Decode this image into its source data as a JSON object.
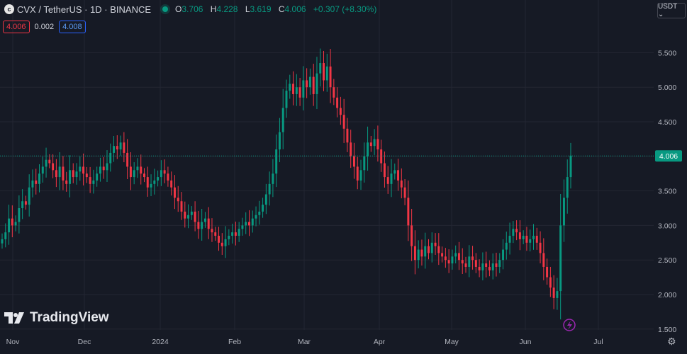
{
  "header": {
    "symbol_title": "CVX / TetherUS · 1D · BINANCE",
    "ohlc": {
      "o_label": "O",
      "o_value": "3.706",
      "h_label": "H",
      "h_value": "4.228",
      "l_label": "L",
      "l_value": "3.619",
      "c_label": "C",
      "c_value": "4.006",
      "change": "+0.307 (+8.30%)"
    }
  },
  "quote": {
    "bid": "4.006",
    "spread": "0.002",
    "ask": "4.008"
  },
  "currency_button": "USDT ⌄",
  "brand": "TradingView",
  "colors": {
    "up": "#089981",
    "down": "#f23645",
    "background": "#161a25",
    "grid": "#232632",
    "axis_text": "#b2b5be",
    "price_label": "#089981"
  },
  "chart_data": {
    "type": "candlestick",
    "y_ticks": [
      "1.500",
      "2.000",
      "2.500",
      "3.000",
      "3.500",
      "4.000",
      "4.500",
      "5.000",
      "5.500"
    ],
    "x_ticks": [
      "Nov",
      "Dec",
      "2024",
      "Feb",
      "Mar",
      "Apr",
      "May",
      "Jun",
      "Jul"
    ],
    "ylim": [
      1.45,
      5.85
    ],
    "last_price": "4.006",
    "grid": true,
    "closes": [
      2.8,
      2.9,
      3.1,
      3.0,
      3.05,
      3.25,
      3.35,
      3.3,
      3.55,
      3.65,
      3.6,
      3.75,
      3.85,
      3.95,
      3.9,
      3.8,
      3.7,
      3.85,
      3.65,
      3.6,
      3.8,
      3.7,
      3.78,
      3.85,
      3.75,
      3.7,
      3.6,
      3.65,
      3.75,
      3.85,
      3.8,
      3.9,
      4.05,
      4.15,
      4.1,
      4.2,
      4.05,
      3.85,
      3.7,
      3.8,
      3.85,
      3.75,
      3.7,
      3.55,
      3.6,
      3.65,
      3.7,
      3.8,
      3.75,
      3.65,
      3.55,
      3.4,
      3.35,
      3.2,
      3.1,
      3.15,
      3.2,
      3.05,
      2.95,
      3.05,
      3.1,
      2.95,
      2.9,
      2.85,
      2.75,
      2.7,
      2.8,
      2.85,
      2.9,
      2.85,
      2.95,
      3.0,
      3.05,
      3.0,
      3.1,
      3.15,
      3.2,
      3.3,
      3.45,
      3.6,
      3.75,
      4.1,
      4.35,
      4.7,
      4.95,
      5.05,
      4.9,
      5.0,
      4.85,
      5.1,
      5.0,
      5.15,
      4.9,
      5.2,
      5.35,
      5.1,
      5.3,
      5.0,
      4.85,
      4.7,
      4.6,
      4.4,
      4.2,
      4.0,
      3.85,
      3.65,
      3.8,
      4.0,
      4.2,
      4.15,
      4.25,
      4.1,
      3.9,
      3.7,
      3.6,
      3.75,
      3.8,
      3.65,
      3.55,
      3.4,
      3.0,
      2.7,
      2.5,
      2.65,
      2.55,
      2.7,
      2.6,
      2.75,
      2.7,
      2.6,
      2.55,
      2.5,
      2.45,
      2.55,
      2.6,
      2.5,
      2.45,
      2.4,
      2.55,
      2.5,
      2.4,
      2.35,
      2.45,
      2.4,
      2.35,
      2.45,
      2.4,
      2.5,
      2.65,
      2.75,
      2.85,
      2.95,
      2.9,
      2.8,
      2.85,
      2.75,
      2.8,
      2.85,
      2.75,
      2.6,
      2.4,
      2.25,
      2.1,
      1.95,
      2.05,
      3.0,
      3.4,
      3.7,
      4.01
    ]
  }
}
